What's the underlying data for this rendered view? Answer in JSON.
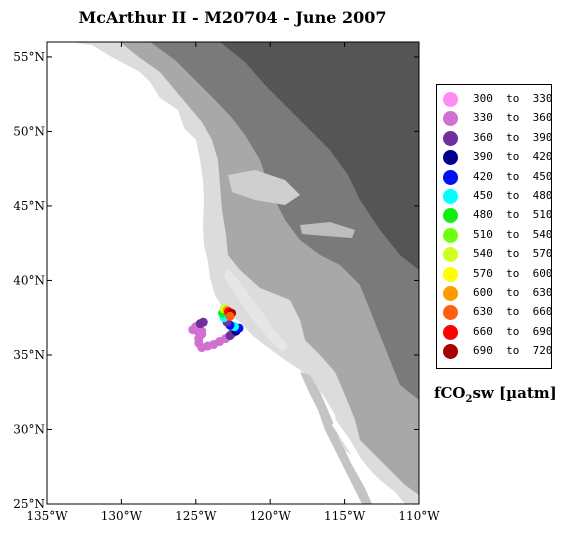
{
  "title": "McArthur II - M20704 - June 2007",
  "map": {
    "lon_range": [
      -135,
      -110
    ],
    "lat_range": [
      25,
      56
    ],
    "lon_ticks": [
      {
        "value": -135,
        "label": "135°W"
      },
      {
        "value": -130,
        "label": "130°W"
      },
      {
        "value": -125,
        "label": "125°W"
      },
      {
        "value": -120,
        "label": "120°W"
      },
      {
        "value": -115,
        "label": "115°W"
      },
      {
        "value": -110,
        "label": "110°W"
      }
    ],
    "lat_ticks": [
      {
        "value": 25,
        "label": "25°N"
      },
      {
        "value": 30,
        "label": "30°N"
      },
      {
        "value": 35,
        "label": "35°N"
      },
      {
        "value": 40,
        "label": "40°N"
      },
      {
        "value": 45,
        "label": "45°N"
      },
      {
        "value": 50,
        "label": "50°N"
      },
      {
        "value": 55,
        "label": "55°N"
      }
    ],
    "colors": {
      "ocean": "#ffffff",
      "land_low": "#dcdcdc",
      "land_mid": "#a8a8a8",
      "land_high": "#7a7a7a",
      "land_peak": "#555555"
    },
    "ship_track": [
      {
        "lon": -124.6,
        "lat": 36.6,
        "fco2": 345
      },
      {
        "lon": -124.9,
        "lat": 36.6,
        "fco2": 345
      },
      {
        "lon": -125.2,
        "lat": 36.7,
        "fco2": 350
      },
      {
        "lon": -125.0,
        "lat": 36.9,
        "fco2": 345
      },
      {
        "lon": -124.7,
        "lat": 37.1,
        "fco2": 370
      },
      {
        "lon": -124.5,
        "lat": 37.2,
        "fco2": 370
      },
      {
        "lon": -124.6,
        "lat": 36.4,
        "fco2": 340
      },
      {
        "lon": -124.8,
        "lat": 36.1,
        "fco2": 340
      },
      {
        "lon": -124.8,
        "lat": 35.8,
        "fco2": 340
      },
      {
        "lon": -124.6,
        "lat": 35.5,
        "fco2": 340
      },
      {
        "lon": -124.2,
        "lat": 35.6,
        "fco2": 340
      },
      {
        "lon": -123.8,
        "lat": 35.7,
        "fco2": 340
      },
      {
        "lon": -123.4,
        "lat": 35.9,
        "fco2": 345
      },
      {
        "lon": -123.0,
        "lat": 36.1,
        "fco2": 350
      },
      {
        "lon": -122.7,
        "lat": 36.3,
        "fco2": 360
      },
      {
        "lon": -122.5,
        "lat": 36.5,
        "fco2": 375
      },
      {
        "lon": -122.3,
        "lat": 36.6,
        "fco2": 410
      },
      {
        "lon": -122.1,
        "lat": 36.8,
        "fco2": 430
      },
      {
        "lon": -122.4,
        "lat": 36.9,
        "fco2": 460
      },
      {
        "lon": -122.7,
        "lat": 37.0,
        "fco2": 440
      },
      {
        "lon": -122.9,
        "lat": 37.2,
        "fco2": 380
      },
      {
        "lon": -123.1,
        "lat": 37.5,
        "fco2": 470
      },
      {
        "lon": -123.2,
        "lat": 37.8,
        "fco2": 500
      },
      {
        "lon": -123.1,
        "lat": 38.1,
        "fco2": 560
      },
      {
        "lon": -122.9,
        "lat": 38.0,
        "fco2": 610
      },
      {
        "lon": -122.8,
        "lat": 37.9,
        "fco2": 680
      },
      {
        "lon": -122.6,
        "lat": 37.8,
        "fco2": 700
      },
      {
        "lon": -122.7,
        "lat": 37.6,
        "fco2": 650
      }
    ]
  },
  "legend": {
    "entries": [
      {
        "low": 300,
        "high": 330,
        "label": "300  to  330",
        "color": "#ff8cf0"
      },
      {
        "low": 330,
        "high": 360,
        "label": "330  to  360",
        "color": "#d070d0"
      },
      {
        "low": 360,
        "high": 390,
        "label": "360  to  390",
        "color": "#70309c"
      },
      {
        "low": 390,
        "high": 420,
        "label": "390  to  420",
        "color": "#00008c"
      },
      {
        "low": 420,
        "high": 450,
        "label": "420  to  450",
        "color": "#0010f0"
      },
      {
        "low": 450,
        "high": 480,
        "label": "450  to  480",
        "color": "#00ffff"
      },
      {
        "low": 480,
        "high": 510,
        "label": "480  to  510",
        "color": "#10f010"
      },
      {
        "low": 510,
        "high": 540,
        "label": "510  to  540",
        "color": "#70ff10"
      },
      {
        "low": 540,
        "high": 570,
        "label": "540  to  570",
        "color": "#d0ff20"
      },
      {
        "low": 570,
        "high": 600,
        "label": "570  to  600",
        "color": "#ffff00"
      },
      {
        "low": 600,
        "high": 630,
        "label": "600  to  630",
        "color": "#ff9c00"
      },
      {
        "low": 630,
        "high": 660,
        "label": "630  to  660",
        "color": "#ff6010"
      },
      {
        "low": 660,
        "high": 690,
        "label": "660  to  690",
        "color": "#ff0000"
      },
      {
        "low": 690,
        "high": 720,
        "label": "690  to  720",
        "color": "#a80000"
      }
    ],
    "unit_main": "fCO",
    "unit_sub": "2",
    "unit_rest": "sw [µatm]"
  }
}
